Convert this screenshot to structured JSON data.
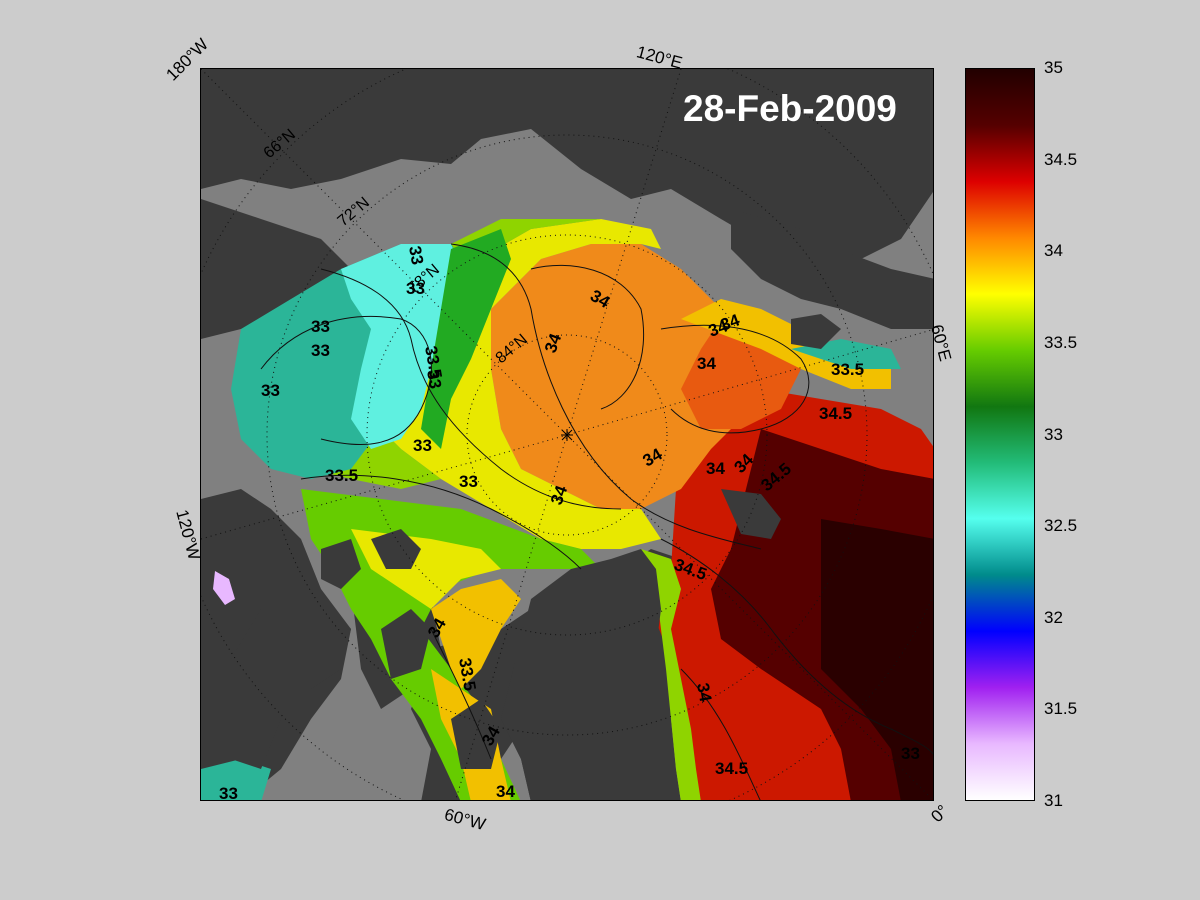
{
  "title": "28-Feb-2009",
  "longitude_labels": {
    "w180": "180°W",
    "e120": "120°E",
    "e60": "60°E",
    "w120": "120°W",
    "w60": "60°W",
    "zero": "0°"
  },
  "latitude_labels": {
    "n66": "66°N",
    "n72": "72°N",
    "n78": "78°N",
    "n84": "84°N"
  },
  "contour_labels": {
    "c01": "33",
    "c02": "33",
    "c03": "33",
    "c04": "33",
    "c05": "33",
    "c06": "33.5",
    "c07": "33",
    "c08": "33",
    "c09": "33",
    "c10": "33.5",
    "c11": "33",
    "c12": "34",
    "c13": "34",
    "c14": "34",
    "c15": "34",
    "c16": "34",
    "c17": "34",
    "c18": "33.5",
    "c19": "34.5",
    "c20": "34",
    "c21": "34",
    "c22": "34.5",
    "c23": "34.5",
    "c24": "34",
    "c25": "33.5",
    "c26": "34",
    "c27": "34",
    "c28": "34",
    "c29": "34.5",
    "c30": "34",
    "c31": "33"
  },
  "colorbar": {
    "min": 31,
    "max": 35,
    "ticks": [
      "35",
      "34.5",
      "34",
      "33.5",
      "33",
      "32.5",
      "32",
      "31.5",
      "31"
    ],
    "colors": [
      "#ffffff",
      "#e8b8ff",
      "#a020f0",
      "#0000ff",
      "#008b8b",
      "#55ffee",
      "#22bb77",
      "#117711",
      "#66cc00",
      "#ffff00",
      "#ff8800",
      "#dd0000",
      "#550000",
      "#220000"
    ]
  },
  "colors": {
    "land_dark": "#3a3a3a",
    "ice_gray": "#808080",
    "teal": "#2bb598",
    "cyan": "#5ff0e0",
    "green": "#22aa22",
    "yellow_green": "#aee000",
    "yellow": "#f2ee00",
    "orange": "#f08a1a",
    "red": "#cc1800",
    "dark_red": "#3a0000"
  }
}
